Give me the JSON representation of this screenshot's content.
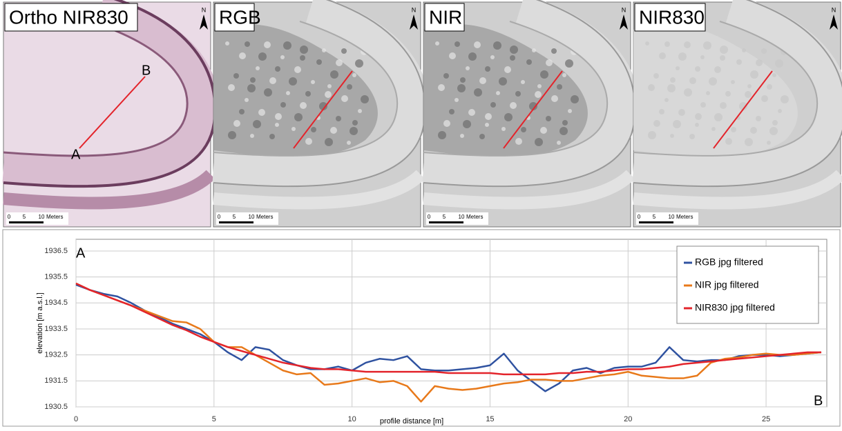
{
  "panels": [
    {
      "title": "Ortho NIR830",
      "scale_labels": [
        "0",
        "5",
        "10",
        "Meters"
      ]
    },
    {
      "title": "RGB",
      "scale_labels": [
        "0",
        "5",
        "10",
        "Meters"
      ]
    },
    {
      "title": "NIR",
      "scale_labels": [
        "0",
        "5",
        "10",
        "Meters"
      ]
    },
    {
      "title": "NIR830",
      "scale_labels": [
        "0",
        "5",
        "10",
        "Meters"
      ]
    }
  ],
  "north": "N",
  "profile_labels": {
    "start": "A",
    "end": "B"
  },
  "chart_data": {
    "type": "line",
    "xlabel": "profile distance [m]",
    "ylabel": "elevation [m a.s.l.]",
    "x": [
      0,
      0.5,
      1,
      1.5,
      2,
      2.5,
      3,
      3.5,
      4,
      4.5,
      5,
      5.5,
      6,
      6.5,
      7,
      7.5,
      8,
      8.5,
      9,
      9.5,
      10,
      10.5,
      11,
      11.5,
      12,
      12.5,
      13,
      13.5,
      14,
      14.5,
      15,
      15.5,
      16,
      16.5,
      17,
      17.5,
      18,
      18.5,
      19,
      19.5,
      20,
      20.5,
      21,
      21.5,
      22,
      22.5,
      23,
      23.5,
      24,
      24.5,
      25,
      25.5,
      26,
      26.5,
      27
    ],
    "series": [
      {
        "name": "RGB jpg filtered",
        "color": "#2f52a0",
        "values": [
          1935.2,
          1935.0,
          1934.85,
          1934.75,
          1934.5,
          1934.2,
          1933.95,
          1933.7,
          1933.5,
          1933.3,
          1933.0,
          1932.6,
          1932.3,
          1932.8,
          1932.7,
          1932.3,
          1932.1,
          1931.95,
          1931.95,
          1932.05,
          1931.9,
          1932.2,
          1932.35,
          1932.3,
          1932.45,
          1931.95,
          1931.9,
          1931.9,
          1931.95,
          1932.0,
          1932.1,
          1932.55,
          1931.9,
          1931.5,
          1931.1,
          1931.4,
          1931.9,
          1932.0,
          1931.8,
          1932.0,
          1932.05,
          1932.05,
          1932.2,
          1932.8,
          1932.3,
          1932.25,
          1932.3,
          1932.3,
          1932.45,
          1932.5,
          1932.5,
          1932.45,
          1932.5,
          1932.55,
          1932.6
        ]
      },
      {
        "name": "NIR jpg filtered",
        "color": "#e8791a",
        "values": [
          1935.25,
          1935.0,
          1934.8,
          1934.6,
          1934.4,
          1934.2,
          1934.0,
          1933.8,
          1933.75,
          1933.5,
          1933.0,
          1932.8,
          1932.8,
          1932.5,
          1932.2,
          1931.9,
          1931.75,
          1931.8,
          1931.35,
          1931.4,
          1931.5,
          1931.6,
          1931.45,
          1931.5,
          1931.3,
          1930.7,
          1931.3,
          1931.2,
          1931.15,
          1931.2,
          1931.3,
          1931.4,
          1931.45,
          1931.55,
          1931.55,
          1931.5,
          1931.5,
          1931.6,
          1931.7,
          1931.75,
          1931.85,
          1931.7,
          1931.65,
          1931.6,
          1931.6,
          1931.7,
          1932.2,
          1932.35,
          1932.4,
          1932.5,
          1932.55,
          1932.5,
          1932.5,
          1932.55,
          1932.6
        ]
      },
      {
        "name": "NIR830 jpg filtered",
        "color": "#e3242b",
        "values": [
          1935.25,
          1935.0,
          1934.8,
          1934.6,
          1934.4,
          1934.15,
          1933.9,
          1933.65,
          1933.45,
          1933.2,
          1933.0,
          1932.8,
          1932.65,
          1932.5,
          1932.35,
          1932.2,
          1932.1,
          1932.0,
          1931.95,
          1931.95,
          1931.9,
          1931.85,
          1931.85,
          1931.85,
          1931.85,
          1931.85,
          1931.85,
          1931.8,
          1931.8,
          1931.8,
          1931.8,
          1931.75,
          1931.75,
          1931.75,
          1931.75,
          1931.8,
          1931.8,
          1931.85,
          1931.85,
          1931.9,
          1931.95,
          1931.95,
          1932.0,
          1932.05,
          1932.15,
          1932.2,
          1932.25,
          1932.3,
          1932.35,
          1932.4,
          1932.45,
          1932.5,
          1932.55,
          1932.6,
          1932.6
        ]
      }
    ],
    "xlim": [
      0,
      27.2
    ],
    "ylim": [
      1930.5,
      1936.95
    ],
    "xticks": [
      0,
      5,
      10,
      15,
      20,
      25
    ],
    "yticks": [
      1930.5,
      1931.5,
      1932.5,
      1933.5,
      1934.5,
      1935.5,
      1936.5
    ],
    "grid": true,
    "legend": "upper right"
  }
}
